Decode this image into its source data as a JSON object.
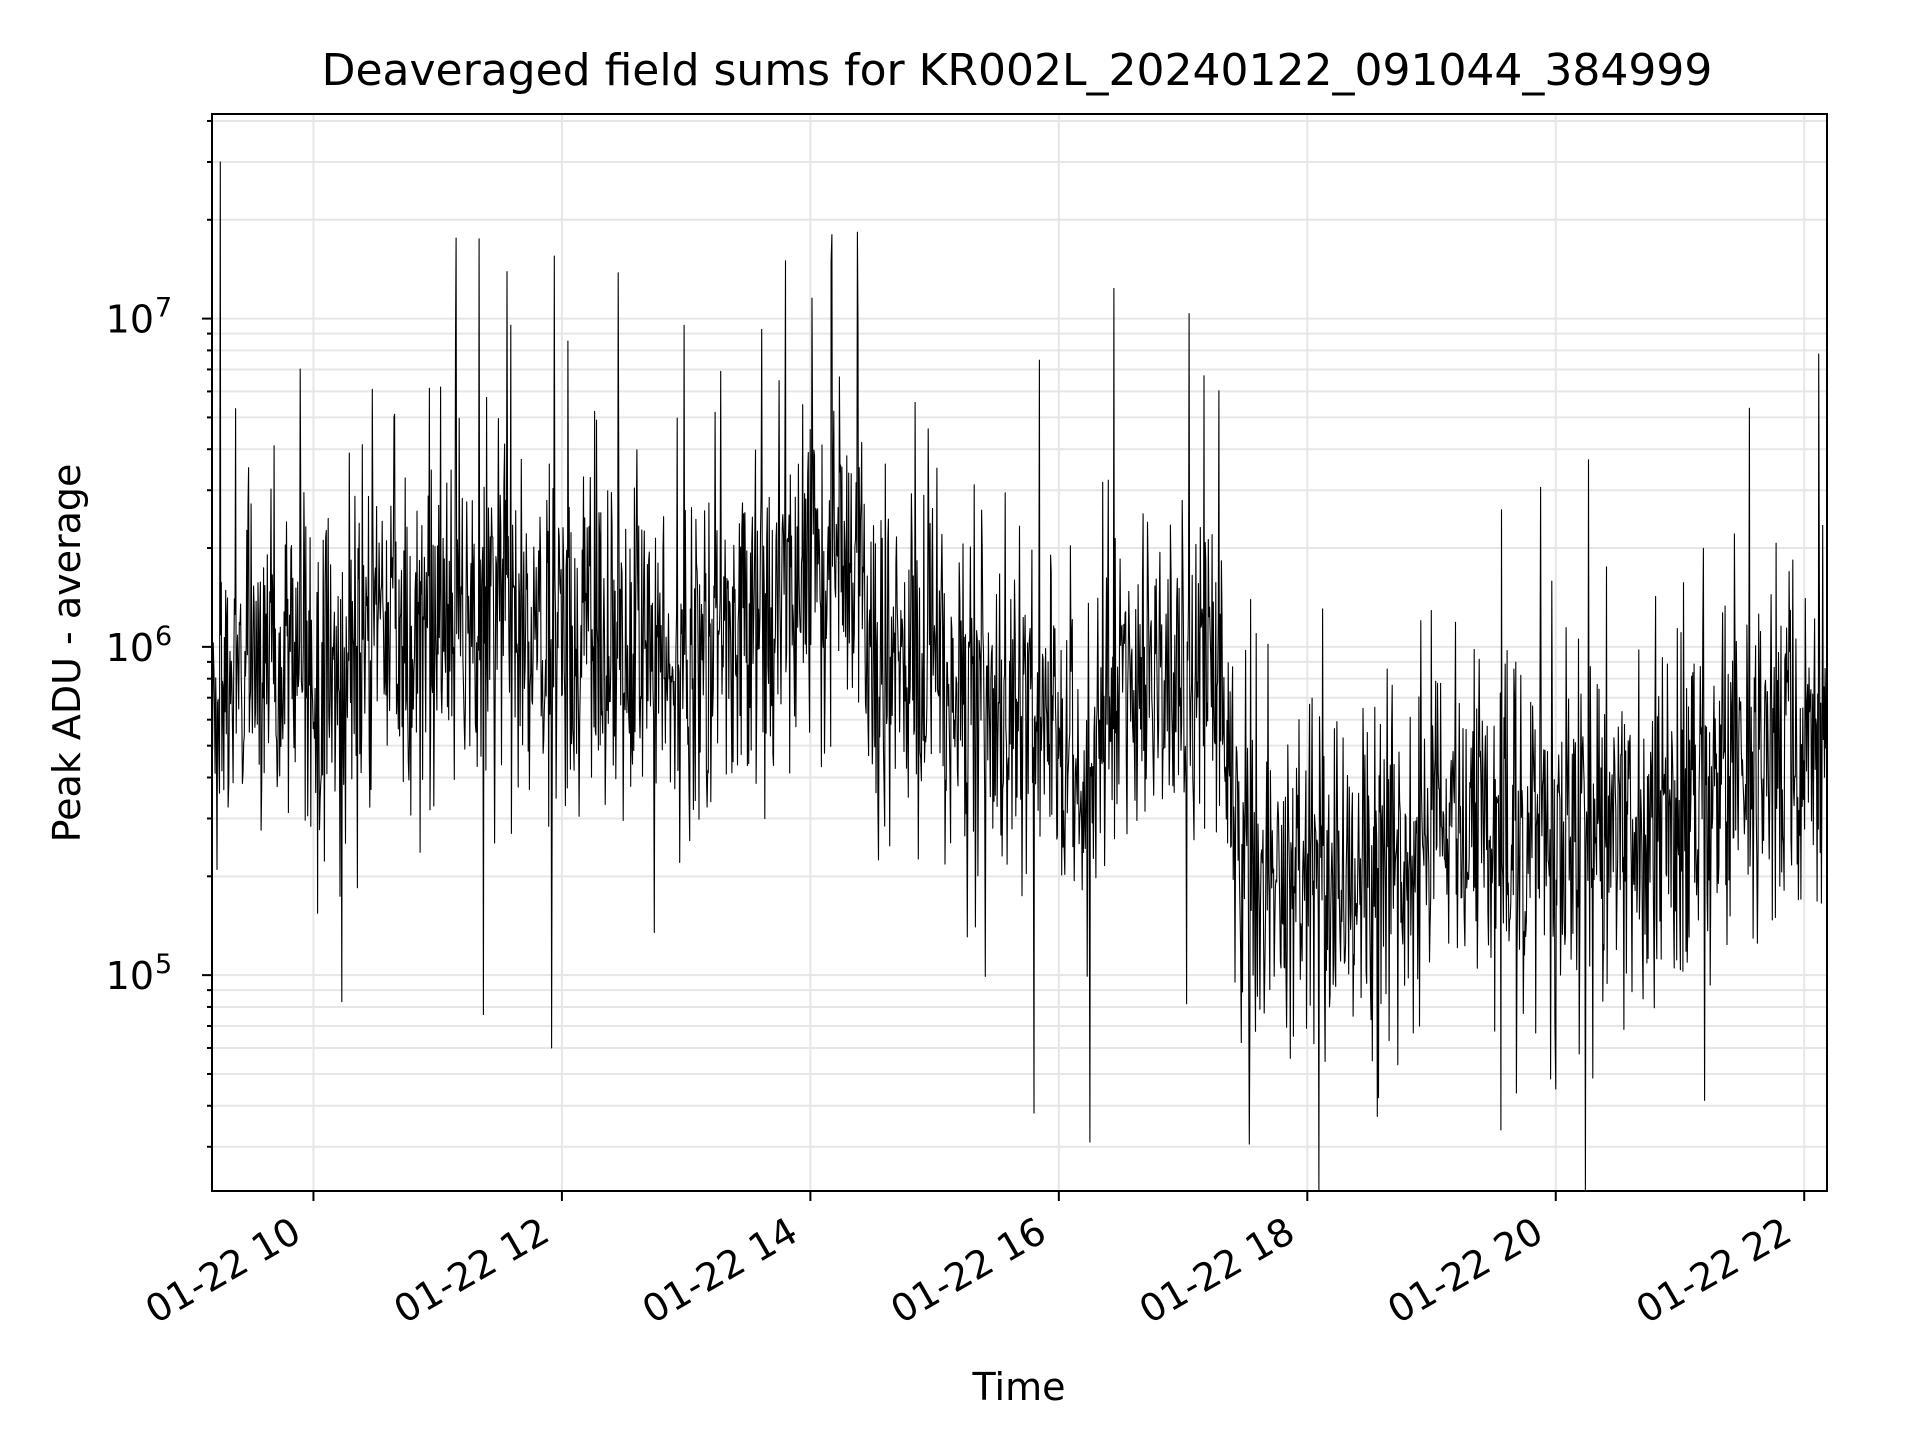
{
  "chart_data": {
    "type": "line",
    "title": "Deaveraged field sums for KR002L_20240122_091044_384999",
    "xlabel": "Time",
    "ylabel": "Peak ADU - average",
    "xlim": [
      "01-22 09:11",
      "01-22 22:11"
    ],
    "ylim": [
      22000,
      42000000
    ],
    "yscale": "log",
    "grid": true,
    "x_tick_labels": [
      "01-22 10",
      "01-22 12",
      "01-22 14",
      "01-22 16",
      "01-22 18",
      "01-22 20",
      "01-22 22"
    ],
    "y_tick_labels": [
      {
        "base": "10",
        "exp": "5"
      },
      {
        "base": "10",
        "exp": "6"
      },
      {
        "base": "10",
        "exp": "7"
      }
    ],
    "series": [
      {
        "color": "#000000",
        "x": [
          "01-22 09:11",
          "01-22 09:30",
          "01-22 10:00",
          "01-22 10:30",
          "01-22 11:00",
          "01-22 11:30",
          "01-22 12:00",
          "01-22 12:30",
          "01-22 13:00",
          "01-22 13:30",
          "01-22 14:00",
          "01-22 14:20",
          "01-22 14:30",
          "01-22 15:00",
          "01-22 15:30",
          "01-22 16:00",
          "01-22 16:15",
          "01-22 16:30",
          "01-22 17:00",
          "01-22 17:20",
          "01-22 17:30",
          "01-22 18:00",
          "01-22 18:30",
          "01-22 19:00",
          "01-22 19:30",
          "01-22 20:00",
          "01-22 20:30",
          "01-22 21:00",
          "01-22 21:30",
          "01-22 22:00",
          "01-22 22:10"
        ],
        "values": [
          600000,
          1000000,
          900000,
          1000000,
          1200000,
          1300000,
          900000,
          1100000,
          900000,
          1200000,
          1900000,
          2100000,
          1000000,
          900000,
          700000,
          500000,
          300000,
          900000,
          800000,
          600000,
          200000,
          190000,
          200000,
          280000,
          300000,
          280000,
          300000,
          330000,
          350000,
          500000,
          600000
        ],
        "peaks": [
          {
            "x": "01-22 09:15",
            "value": 30000000
          },
          {
            "x": "01-22 13:48",
            "value": 15000000
          },
          {
            "x": "01-22 14:10",
            "value": 15000000
          },
          {
            "x": "01-22 22:07",
            "value": 7800000
          }
        ],
        "troughs": [
          {
            "x": "01-22 11:55",
            "value": 60000
          },
          {
            "x": "01-22 15:48",
            "value": 38000
          },
          {
            "x": "01-22 16:15",
            "value": 31000
          },
          {
            "x": "01-22 20:00",
            "value": 45000
          }
        ]
      }
    ]
  }
}
